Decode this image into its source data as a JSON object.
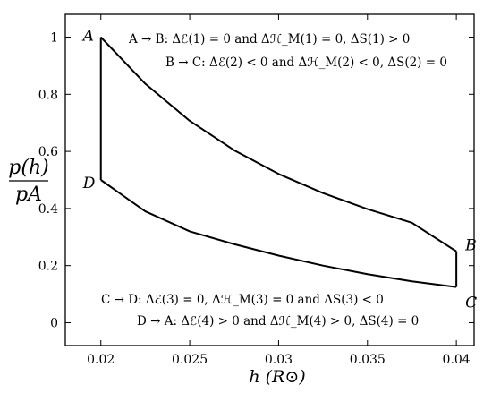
{
  "chart_data": {
    "type": "line",
    "xlabel": "h (R⊙)",
    "ylabel_numerator": "p(h)",
    "ylabel_denominator": "pA",
    "xlim": [
      0.018,
      0.041
    ],
    "ylim": [
      -0.08,
      1.08
    ],
    "x_ticks": [
      0.02,
      0.025,
      0.03,
      0.035,
      0.04
    ],
    "x_tick_labels": [
      "0.02",
      "0.025",
      "0.03",
      "0.035",
      "0.04"
    ],
    "y_ticks": [
      0,
      0.2,
      0.4,
      0.6,
      0.8,
      1
    ],
    "y_tick_labels": [
      "0",
      "0.2",
      "0.4",
      "0.6",
      "0.8",
      "1"
    ],
    "grid": false,
    "points": [
      {
        "name": "A",
        "x": 0.02,
        "y": 1.0
      },
      {
        "name": "B",
        "x": 0.04,
        "y": 0.25
      },
      {
        "name": "C",
        "x": 0.04,
        "y": 0.125
      },
      {
        "name": "D",
        "x": 0.02,
        "y": 0.5
      }
    ],
    "series": [
      {
        "x": [
          0.02,
          0.0225,
          0.025,
          0.0275,
          0.03,
          0.0325,
          0.035,
          0.0375,
          0.04
        ],
        "y": [
          1.0,
          0.837,
          0.707,
          0.604,
          0.521,
          0.454,
          0.398,
          0.35,
          0.25
        ]
      },
      {
        "x": [
          0.04,
          0.04
        ],
        "y": [
          0.25,
          0.125
        ]
      },
      {
        "x": [
          0.04,
          0.0375,
          0.035,
          0.0325,
          0.03,
          0.0275,
          0.025,
          0.0225,
          0.02
        ],
        "y": [
          0.125,
          0.145,
          0.17,
          0.2,
          0.235,
          0.275,
          0.32,
          0.39,
          0.5
        ]
      },
      {
        "x": [
          0.02,
          0.02
        ],
        "y": [
          0.5,
          1.0
        ]
      }
    ],
    "annotations": [
      "A → B: Δℰ(1) = 0 and Δℋ_M(1) = 0, ΔS(1) > 0",
      "B → C: Δℰ(2) < 0 and Δℋ_M(2) < 0, ΔS(2) = 0",
      "C → D: Δℰ(3) = 0, Δℋ_M(3) = 0 and ΔS(3) < 0",
      "D → A: Δℰ(4) > 0 and Δℋ_M(4) > 0, ΔS(4) = 0"
    ]
  }
}
